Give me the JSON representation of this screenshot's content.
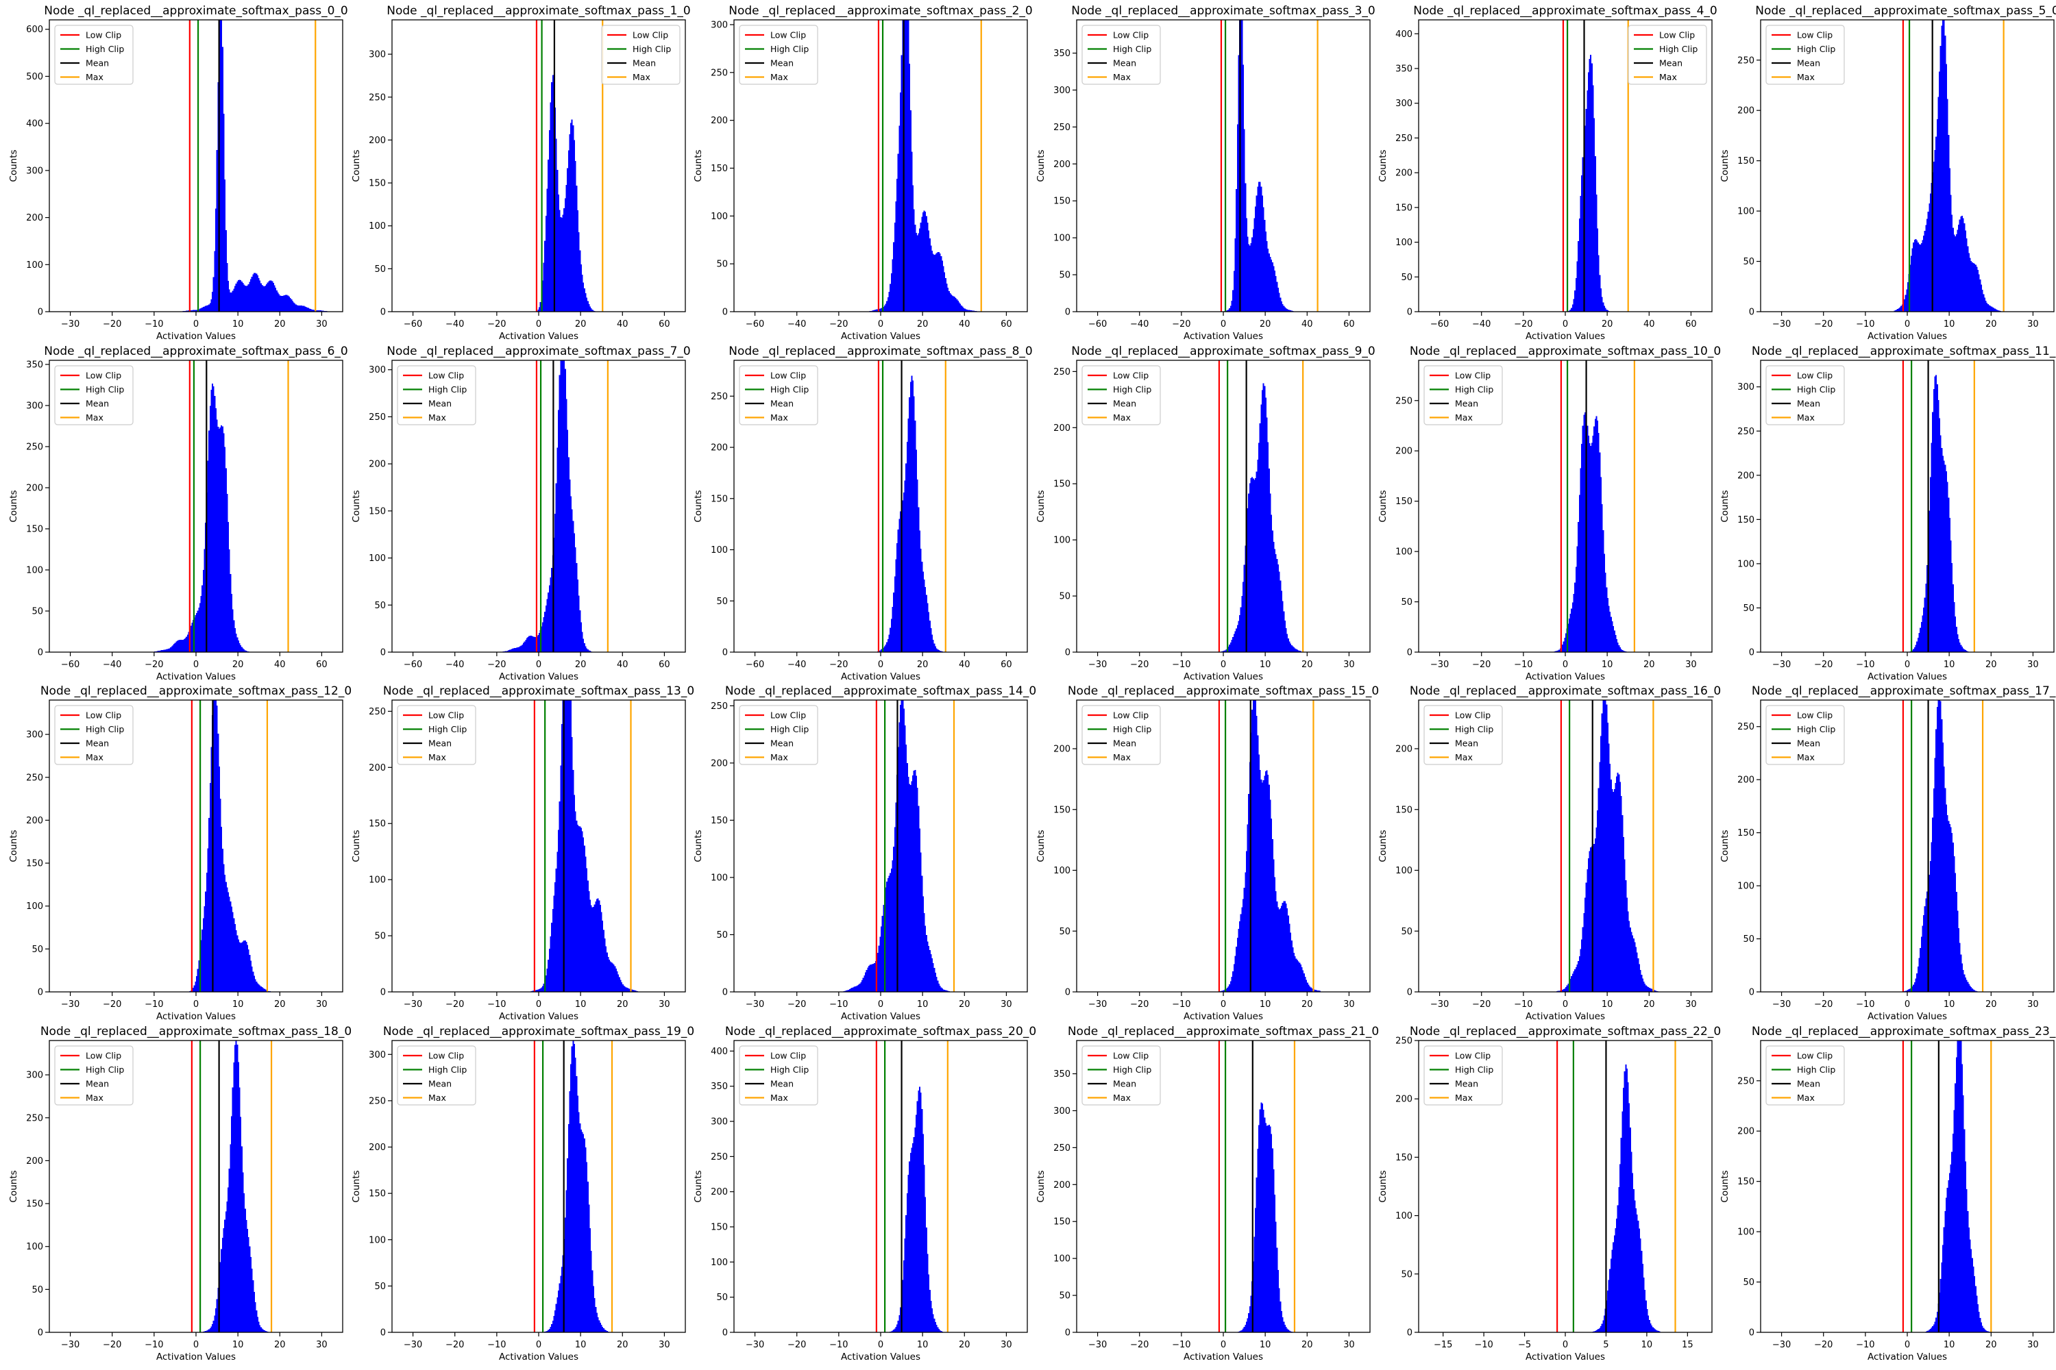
{
  "figure": {
    "colors": {
      "hist": "#0000ff",
      "low_clip": "#ff0000",
      "high_clip": "#008000",
      "mean": "#000000",
      "max": "#ffa500"
    },
    "legend_labels": {
      "low_clip": "Low Clip",
      "high_clip": "High Clip",
      "mean": "Mean",
      "max": "Max"
    },
    "xlabel": "Activation Values",
    "ylabel": "Counts",
    "legend_placement": "upper-left (upper-right in pass_1_0 and pass_4_0)"
  },
  "chart_data": [
    {
      "type": "histogram",
      "title": "Node _ql_replaced__approximate_softmax_pass_0_0",
      "xlabel": "Activation Values",
      "ylabel": "Counts",
      "xlim": [
        -35,
        35
      ],
      "ylim": [
        0,
        620
      ],
      "xticks": [
        -30,
        -20,
        -10,
        0,
        10,
        20,
        30
      ],
      "yticks": [
        0,
        100,
        200,
        300,
        400,
        500,
        600
      ],
      "low_clip": -1.5,
      "high_clip": 0.5,
      "mean": 5.5,
      "max": 28.5,
      "legend_position": "top-left",
      "components": [
        {
          "mu": 5.8,
          "sigma": 0.8,
          "peak": 560
        },
        {
          "mu": 14,
          "sigma": 6,
          "peak": 70
        }
      ]
    },
    {
      "type": "histogram",
      "title": "Node _ql_replaced__approximate_softmax_pass_1_0",
      "xlabel": "Activation Values",
      "ylabel": "Counts",
      "xlim": [
        -70,
        70
      ],
      "ylim": [
        0,
        340
      ],
      "xticks": [
        -60,
        -40,
        -20,
        0,
        20,
        40,
        60
      ],
      "yticks": [
        0,
        50,
        100,
        150,
        200,
        250,
        300
      ],
      "low_clip": -1,
      "high_clip": 1.5,
      "mean": 7.5,
      "max": 30.5,
      "legend_position": "top-right",
      "components": [
        {
          "mu": 6,
          "sigma": 2,
          "peak": 275
        },
        {
          "mu": 15,
          "sigma": 3.5,
          "peak": 200
        }
      ]
    },
    {
      "type": "histogram",
      "title": "Node _ql_replaced__approximate_softmax_pass_2_0",
      "xlabel": "Activation Values",
      "ylabel": "Counts",
      "xlim": [
        -70,
        70
      ],
      "ylim": [
        0,
        305
      ],
      "xticks": [
        -60,
        -40,
        -20,
        0,
        20,
        40,
        60
      ],
      "yticks": [
        0,
        50,
        100,
        150,
        200,
        250,
        300
      ],
      "low_clip": -1,
      "high_clip": 1,
      "mean": 11,
      "max": 48,
      "legend_position": "top-left",
      "components": [
        {
          "mu": 11,
          "sigma": 2.5,
          "peak": 290
        },
        {
          "mu": 20,
          "sigma": 8,
          "peak": 90
        }
      ]
    },
    {
      "type": "histogram",
      "title": "Node _ql_replaced__approximate_softmax_pass_3_0",
      "xlabel": "Activation Values",
      "ylabel": "Counts",
      "xlim": [
        -70,
        70
      ],
      "ylim": [
        0,
        395
      ],
      "xticks": [
        -60,
        -40,
        -20,
        0,
        20,
        40,
        60
      ],
      "yticks": [
        0,
        50,
        100,
        150,
        200,
        250,
        300,
        350
      ],
      "low_clip": -1,
      "high_clip": 1,
      "mean": 8,
      "max": 45,
      "legend_position": "top-left",
      "components": [
        {
          "mu": 8,
          "sigma": 1.5,
          "peak": 370
        },
        {
          "mu": 17,
          "sigma": 5,
          "peak": 150
        }
      ]
    },
    {
      "type": "histogram",
      "title": "Node _ql_replaced__approximate_softmax_pass_4_0",
      "xlabel": "Activation Values",
      "ylabel": "Counts",
      "xlim": [
        -70,
        70
      ],
      "ylim": [
        0,
        420
      ],
      "xticks": [
        -60,
        -40,
        -20,
        0,
        20,
        40,
        60
      ],
      "yticks": [
        0,
        50,
        100,
        150,
        200,
        250,
        300,
        350,
        400
      ],
      "low_clip": -1,
      "high_clip": 1,
      "mean": 9,
      "max": 30,
      "legend_position": "top-right",
      "components": [
        {
          "mu": 11,
          "sigma": 2.8,
          "peak": 380
        }
      ]
    },
    {
      "type": "histogram",
      "title": "Node _ql_replaced__approximate_softmax_pass_5_0",
      "xlabel": "Activation Values",
      "ylabel": "Counts",
      "xlim": [
        -35,
        35
      ],
      "ylim": [
        0,
        290
      ],
      "xticks": [
        -30,
        -20,
        -10,
        0,
        10,
        20,
        30
      ],
      "yticks": [
        0,
        50,
        100,
        150,
        200,
        250
      ],
      "low_clip": -1,
      "high_clip": 0.5,
      "mean": 6,
      "max": 23,
      "legend_position": "top-left",
      "components": [
        {
          "mu": 8,
          "sigma": 1.5,
          "peak": 250
        },
        {
          "mu": 3,
          "sigma": 2,
          "peak": 80
        },
        {
          "mu": 13,
          "sigma": 3,
          "peak": 80
        }
      ]
    },
    {
      "type": "histogram",
      "title": "Node _ql_replaced__approximate_softmax_pass_6_0",
      "xlabel": "Activation Values",
      "ylabel": "Counts",
      "xlim": [
        -70,
        70
      ],
      "ylim": [
        0,
        355
      ],
      "xticks": [
        -60,
        -40,
        -20,
        0,
        20,
        40,
        60
      ],
      "yticks": [
        0,
        50,
        100,
        150,
        200,
        250,
        300,
        350
      ],
      "low_clip": -3,
      "high_clip": -1,
      "mean": 5,
      "max": 44,
      "legend_position": "top-left",
      "components": [
        {
          "mu": 10,
          "sigma": 4,
          "peak": 320
        },
        {
          "mu": 2,
          "sigma": 8,
          "peak": 30
        }
      ]
    },
    {
      "type": "histogram",
      "title": "Node _ql_replaced__approximate_softmax_pass_7_0",
      "xlabel": "Activation Values",
      "ylabel": "Counts",
      "xlim": [
        -70,
        70
      ],
      "ylim": [
        0,
        310
      ],
      "xticks": [
        -60,
        -40,
        -20,
        0,
        20,
        40,
        60
      ],
      "yticks": [
        0,
        50,
        100,
        150,
        200,
        250,
        300
      ],
      "low_clip": -1,
      "high_clip": 1,
      "mean": 7,
      "max": 33,
      "legend_position": "top-left",
      "components": [
        {
          "mu": 12,
          "sigma": 3.8,
          "peak": 290
        },
        {
          "mu": 1,
          "sigma": 7,
          "peak": 20
        }
      ]
    },
    {
      "type": "histogram",
      "title": "Node _ql_replaced__approximate_softmax_pass_8_0",
      "xlabel": "Activation Values",
      "ylabel": "Counts",
      "xlim": [
        -70,
        70
      ],
      "ylim": [
        0,
        285
      ],
      "xticks": [
        -60,
        -40,
        -20,
        0,
        20,
        40,
        60
      ],
      "yticks": [
        0,
        50,
        100,
        150,
        200,
        250
      ],
      "low_clip": -1,
      "high_clip": 1,
      "mean": 10,
      "max": 31,
      "legend_position": "top-left",
      "components": [
        {
          "mu": 14,
          "sigma": 4.5,
          "peak": 235
        }
      ]
    },
    {
      "type": "histogram",
      "title": "Node _ql_replaced__approximate_softmax_pass_9_0",
      "xlabel": "Activation Values",
      "ylabel": "Counts",
      "xlim": [
        -35,
        35
      ],
      "ylim": [
        0,
        260
      ],
      "xticks": [
        -30,
        -20,
        -10,
        0,
        10,
        20,
        30
      ],
      "yticks": [
        0,
        50,
        100,
        150,
        200,
        250
      ],
      "low_clip": -1,
      "high_clip": 1,
      "mean": 5.5,
      "max": 19,
      "legend_position": "top-left",
      "components": [
        {
          "mu": 9,
          "sigma": 2.8,
          "peak": 210
        }
      ]
    },
    {
      "type": "histogram",
      "title": "Node _ql_replaced__approximate_softmax_pass_10_0",
      "xlabel": "Activation Values",
      "ylabel": "Counts",
      "xlim": [
        -35,
        35
      ],
      "ylim": [
        0,
        290
      ],
      "xticks": [
        -30,
        -20,
        -10,
        0,
        10,
        20,
        30
      ],
      "yticks": [
        0,
        50,
        100,
        150,
        200,
        250
      ],
      "low_clip": -1,
      "high_clip": 0.5,
      "mean": 5,
      "max": 16.5,
      "legend_position": "top-left",
      "components": [
        {
          "mu": 6,
          "sigma": 2.5,
          "peak": 250
        }
      ]
    },
    {
      "type": "histogram",
      "title": "Node _ql_replaced__approximate_softmax_pass_11_0",
      "xlabel": "Activation Values",
      "ylabel": "Counts",
      "xlim": [
        -35,
        35
      ],
      "ylim": [
        0,
        330
      ],
      "xticks": [
        -30,
        -20,
        -10,
        0,
        10,
        20,
        30
      ],
      "yticks": [
        0,
        50,
        100,
        150,
        200,
        250,
        300
      ],
      "low_clip": -1,
      "high_clip": 1,
      "mean": 5,
      "max": 16,
      "legend_position": "top-left",
      "components": [
        {
          "mu": 7.5,
          "sigma": 2,
          "peak": 300
        }
      ]
    },
    {
      "type": "histogram",
      "title": "Node _ql_replaced__approximate_softmax_pass_12_0",
      "xlabel": "Activation Values",
      "ylabel": "Counts",
      "xlim": [
        -35,
        35
      ],
      "ylim": [
        0,
        340
      ],
      "xticks": [
        -30,
        -20,
        -10,
        0,
        10,
        20,
        30
      ],
      "yticks": [
        0,
        50,
        100,
        150,
        200,
        250,
        300
      ],
      "low_clip": -1,
      "high_clip": 1,
      "mean": 4,
      "max": 17,
      "legend_position": "top-left",
      "components": [
        {
          "mu": 4.5,
          "sigma": 1.8,
          "peak": 300
        },
        {
          "mu": 10,
          "sigma": 2.5,
          "peak": 70
        }
      ]
    },
    {
      "type": "histogram",
      "title": "Node _ql_replaced__approximate_softmax_pass_13_0",
      "xlabel": "Activation Values",
      "ylabel": "Counts",
      "xlim": [
        -35,
        35
      ],
      "ylim": [
        0,
        260
      ],
      "xticks": [
        -30,
        -20,
        -10,
        0,
        10,
        20,
        30
      ],
      "yticks": [
        0,
        50,
        100,
        150,
        200,
        250
      ],
      "low_clip": -1,
      "high_clip": 1.5,
      "mean": 6,
      "max": 22,
      "legend_position": "top-left",
      "components": [
        {
          "mu": 6.5,
          "sigma": 1.8,
          "peak": 240
        },
        {
          "mu": 11,
          "sigma": 4,
          "peak": 100
        }
      ]
    },
    {
      "type": "histogram",
      "title": "Node _ql_replaced__approximate_softmax_pass_14_0",
      "xlabel": "Activation Values",
      "ylabel": "Counts",
      "xlim": [
        -35,
        35
      ],
      "ylim": [
        0,
        255
      ],
      "xticks": [
        -30,
        -20,
        -10,
        0,
        10,
        20,
        30
      ],
      "yticks": [
        0,
        50,
        100,
        150,
        200,
        250
      ],
      "low_clip": -1,
      "high_clip": 1,
      "mean": 4,
      "max": 17.5,
      "legend_position": "top-left",
      "components": [
        {
          "mu": 6,
          "sigma": 3,
          "peak": 230
        },
        {
          "mu": -1,
          "sigma": 3,
          "peak": 20
        }
      ]
    },
    {
      "type": "histogram",
      "title": "Node _ql_replaced__approximate_softmax_pass_15_0",
      "xlabel": "Activation Values",
      "ylabel": "Counts",
      "xlim": [
        -35,
        35
      ],
      "ylim": [
        0,
        240
      ],
      "xticks": [
        -30,
        -20,
        -10,
        0,
        10,
        20,
        30
      ],
      "yticks": [
        0,
        50,
        100,
        150,
        200
      ],
      "low_clip": -1,
      "high_clip": 0.5,
      "mean": 6.5,
      "max": 21.5,
      "legend_position": "top-left",
      "components": [
        {
          "mu": 8,
          "sigma": 2.5,
          "peak": 215
        },
        {
          "mu": 14,
          "sigma": 3,
          "peak": 60
        }
      ]
    },
    {
      "type": "histogram",
      "title": "Node _ql_replaced__approximate_softmax_pass_16_0",
      "xlabel": "Activation Values",
      "ylabel": "Counts",
      "xlim": [
        -35,
        35
      ],
      "ylim": [
        0,
        240
      ],
      "xticks": [
        -30,
        -20,
        -10,
        0,
        10,
        20,
        30
      ],
      "yticks": [
        0,
        50,
        100,
        150,
        200
      ],
      "low_clip": -1,
      "high_clip": 1,
      "mean": 6.5,
      "max": 21,
      "legend_position": "top-left",
      "components": [
        {
          "mu": 10,
          "sigma": 3.5,
          "peak": 215
        }
      ]
    },
    {
      "type": "histogram",
      "title": "Node _ql_replaced__approximate_softmax_pass_17_0",
      "xlabel": "Activation Values",
      "ylabel": "Counts",
      "xlim": [
        -35,
        35
      ],
      "ylim": [
        0,
        275
      ],
      "xticks": [
        -30,
        -20,
        -10,
        0,
        10,
        20,
        30
      ],
      "yticks": [
        0,
        50,
        100,
        150,
        200,
        250
      ],
      "low_clip": -1,
      "high_clip": 1,
      "mean": 5,
      "max": 18,
      "legend_position": "top-left",
      "components": [
        {
          "mu": 8,
          "sigma": 2.5,
          "peak": 245
        }
      ]
    },
    {
      "type": "histogram",
      "title": "Node _ql_replaced__approximate_softmax_pass_18_0",
      "xlabel": "Activation Values",
      "ylabel": "Counts",
      "xlim": [
        -35,
        35
      ],
      "ylim": [
        0,
        340
      ],
      "xticks": [
        -30,
        -20,
        -10,
        0,
        10,
        20,
        30
      ],
      "yticks": [
        0,
        50,
        100,
        150,
        200,
        250,
        300
      ],
      "low_clip": -1,
      "high_clip": 1,
      "mean": 5.5,
      "max": 18,
      "legend_position": "top-left",
      "components": [
        {
          "mu": 9.5,
          "sigma": 2.2,
          "peak": 290
        }
      ]
    },
    {
      "type": "histogram",
      "title": "Node _ql_replaced__approximate_softmax_pass_19_0",
      "xlabel": "Activation Values",
      "ylabel": "Counts",
      "xlim": [
        -35,
        35
      ],
      "ylim": [
        0,
        315
      ],
      "xticks": [
        -30,
        -20,
        -10,
        0,
        10,
        20,
        30
      ],
      "yticks": [
        0,
        50,
        100,
        150,
        200,
        250,
        300
      ],
      "low_clip": -1,
      "high_clip": 1,
      "mean": 6,
      "max": 17.5,
      "legend_position": "top-left",
      "components": [
        {
          "mu": 9,
          "sigma": 2.2,
          "peak": 295
        }
      ]
    },
    {
      "type": "histogram",
      "title": "Node _ql_replaced__approximate_softmax_pass_20_0",
      "xlabel": "Activation Values",
      "ylabel": "Counts",
      "xlim": [
        -35,
        35
      ],
      "ylim": [
        0,
        415
      ],
      "xticks": [
        -30,
        -20,
        -10,
        0,
        10,
        20,
        30
      ],
      "yticks": [
        0,
        50,
        100,
        150,
        200,
        250,
        300,
        350,
        400
      ],
      "low_clip": -1,
      "high_clip": 1,
      "mean": 5,
      "max": 16,
      "legend_position": "top-left",
      "components": [
        {
          "mu": 8.5,
          "sigma": 1.8,
          "peak": 355
        }
      ]
    },
    {
      "type": "histogram",
      "title": "Node _ql_replaced__approximate_softmax_pass_21_0",
      "xlabel": "Activation Values",
      "ylabel": "Counts",
      "xlim": [
        -35,
        35
      ],
      "ylim": [
        0,
        395
      ],
      "xticks": [
        -30,
        -20,
        -10,
        0,
        10,
        20,
        30
      ],
      "yticks": [
        0,
        50,
        100,
        150,
        200,
        250,
        300,
        350
      ],
      "low_clip": -1,
      "high_clip": 0.5,
      "mean": 7,
      "max": 17,
      "legend_position": "top-left",
      "components": [
        {
          "mu": 10,
          "sigma": 1.8,
          "peak": 345
        }
      ]
    },
    {
      "type": "histogram",
      "title": "Node _ql_replaced__approximate_softmax_pass_22_0",
      "xlabel": "Activation Values",
      "ylabel": "Counts",
      "xlim": [
        -18,
        18
      ],
      "ylim": [
        0,
        250
      ],
      "xticks": [
        -15,
        -10,
        -5,
        0,
        5,
        10,
        15
      ],
      "yticks": [
        0,
        50,
        100,
        150,
        200,
        250
      ],
      "low_clip": -1,
      "high_clip": 1,
      "mean": 5,
      "max": 13.5,
      "legend_position": "top-left",
      "components": [
        {
          "mu": 7.5,
          "sigma": 1.2,
          "peak": 195
        }
      ]
    },
    {
      "type": "histogram",
      "title": "Node _ql_replaced__approximate_softmax_pass_23_0",
      "xlabel": "Activation Values",
      "ylabel": "Counts",
      "xlim": [
        -35,
        35
      ],
      "ylim": [
        0,
        290
      ],
      "xticks": [
        -30,
        -20,
        -10,
        0,
        10,
        20,
        30
      ],
      "yticks": [
        0,
        50,
        100,
        150,
        200,
        250
      ],
      "low_clip": -1,
      "high_clip": 1,
      "mean": 7.5,
      "max": 20,
      "legend_position": "top-left",
      "components": [
        {
          "mu": 12,
          "sigma": 2.2,
          "peak": 265
        }
      ]
    }
  ]
}
